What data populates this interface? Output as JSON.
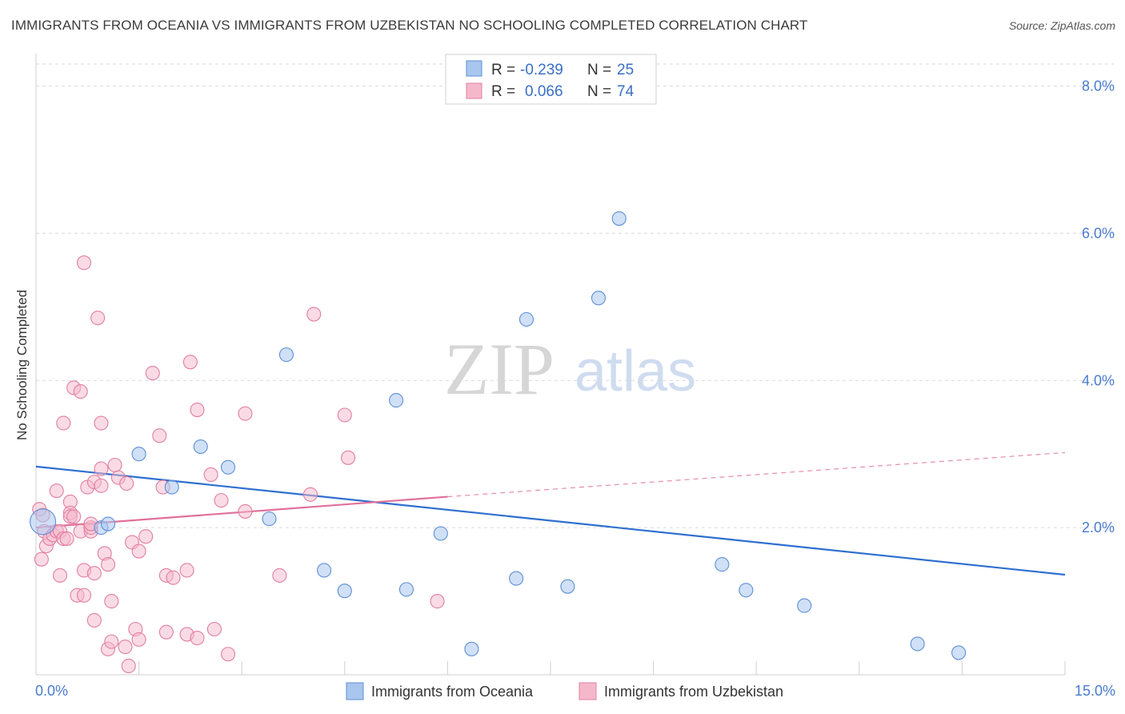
{
  "title": "IMMIGRANTS FROM OCEANIA VS IMMIGRANTS FROM UZBEKISTAN NO SCHOOLING COMPLETED CORRELATION CHART",
  "source": "Source: ZipAtlas.com",
  "watermark": {
    "zip": "ZIP",
    "atlas": "atlas"
  },
  "colors": {
    "oceania_fill": "#a9c6ef",
    "oceania_stroke": "#5e8fd6",
    "oceania_line": "#2f6fd0",
    "uzbekistan_fill": "#f5b8cb",
    "uzbekistan_stroke": "#e17fa0",
    "uzbekistan_line": "#e0709a",
    "tick_label": "#4a7bd0",
    "grid": "#d9d9d9"
  },
  "stats_box": {
    "rows": [
      {
        "r_label": "R =",
        "r_value": "-0.239",
        "n_label": "N =",
        "n_value": "25"
      },
      {
        "r_label": "R =",
        "r_value": "0.066",
        "n_label": "N =",
        "n_value": "74"
      }
    ]
  },
  "chart_data": {
    "type": "scatter",
    "title": "IMMIGRANTS FROM OCEANIA VS IMMIGRANTS FROM UZBEKISTAN NO SCHOOLING COMPLETED CORRELATION CHART",
    "xlabel": "",
    "ylabel": "No Schooling Completed",
    "xlim": [
      0,
      15
    ],
    "ylim": [
      0,
      8.3
    ],
    "x_tick_labels": [
      "0.0%",
      "15.0%"
    ],
    "y_ticks": [
      2,
      4,
      6,
      8
    ],
    "y_tick_labels": [
      "2.0%",
      "4.0%",
      "6.0%",
      "8.0%"
    ],
    "grid": "horizontal dashed",
    "legend_position": "bottom-center",
    "series": [
      {
        "name": "Immigrants from Oceania",
        "color": "#a9c6ef",
        "points": [
          [
            0.1,
            2.08
          ],
          [
            0.95,
            2.0
          ],
          [
            1.05,
            2.05
          ],
          [
            1.5,
            3.0
          ],
          [
            1.98,
            2.55
          ],
          [
            2.4,
            3.1
          ],
          [
            2.8,
            2.82
          ],
          [
            3.4,
            2.12
          ],
          [
            3.65,
            4.35
          ],
          [
            4.2,
            1.42
          ],
          [
            4.5,
            1.14
          ],
          [
            5.25,
            3.73
          ],
          [
            5.4,
            1.16
          ],
          [
            5.9,
            1.92
          ],
          [
            6.35,
            0.35
          ],
          [
            7.0,
            1.31
          ],
          [
            7.15,
            4.83
          ],
          [
            7.75,
            1.2
          ],
          [
            8.2,
            5.12
          ],
          [
            8.5,
            6.2
          ],
          [
            10.0,
            1.5
          ],
          [
            10.35,
            1.15
          ],
          [
            11.2,
            0.94
          ],
          [
            12.85,
            0.42
          ],
          [
            13.45,
            0.3
          ]
        ],
        "trend": {
          "x": [
            0,
            15
          ],
          "y": [
            2.83,
            1.36
          ]
        }
      },
      {
        "name": "Immigrants from Uzbekistan",
        "color": "#f5b8cb",
        "points": [
          [
            0.05,
            2.25
          ],
          [
            0.08,
            1.57
          ],
          [
            0.1,
            2.17
          ],
          [
            0.12,
            1.95
          ],
          [
            0.15,
            1.75
          ],
          [
            0.2,
            1.85
          ],
          [
            0.25,
            1.9
          ],
          [
            0.3,
            2.5
          ],
          [
            0.3,
            1.95
          ],
          [
            0.35,
            1.35
          ],
          [
            0.35,
            1.95
          ],
          [
            0.4,
            1.85
          ],
          [
            0.4,
            3.42
          ],
          [
            0.45,
            1.85
          ],
          [
            0.5,
            2.35
          ],
          [
            0.5,
            2.2
          ],
          [
            0.5,
            2.15
          ],
          [
            0.55,
            2.15
          ],
          [
            0.55,
            3.9
          ],
          [
            0.6,
            1.08
          ],
          [
            0.65,
            3.85
          ],
          [
            0.65,
            1.95
          ],
          [
            0.7,
            5.6
          ],
          [
            0.7,
            1.42
          ],
          [
            0.75,
            2.55
          ],
          [
            0.7,
            1.08
          ],
          [
            0.85,
            2.62
          ],
          [
            0.8,
            1.95
          ],
          [
            0.8,
            2.0
          ],
          [
            0.85,
            1.38
          ],
          [
            0.85,
            0.74
          ],
          [
            0.9,
            4.85
          ],
          [
            0.95,
            3.42
          ],
          [
            0.95,
            2.8
          ],
          [
            0.95,
            2.57
          ],
          [
            1.0,
            1.65
          ],
          [
            1.05,
            1.5
          ],
          [
            1.05,
            0.35
          ],
          [
            1.1,
            0.45
          ],
          [
            1.1,
            1.0
          ],
          [
            1.15,
            2.85
          ],
          [
            1.2,
            2.68
          ],
          [
            1.3,
            0.38
          ],
          [
            1.32,
            2.6
          ],
          [
            1.35,
            0.12
          ],
          [
            1.4,
            1.8
          ],
          [
            1.45,
            0.62
          ],
          [
            1.5,
            1.68
          ],
          [
            1.5,
            0.48
          ],
          [
            1.6,
            1.88
          ],
          [
            1.7,
            4.1
          ],
          [
            1.8,
            3.25
          ],
          [
            1.85,
            2.55
          ],
          [
            1.9,
            1.35
          ],
          [
            1.9,
            0.58
          ],
          [
            2.0,
            1.32
          ],
          [
            2.2,
            1.42
          ],
          [
            2.2,
            0.55
          ],
          [
            2.25,
            4.25
          ],
          [
            2.35,
            0.5
          ],
          [
            2.35,
            3.6
          ],
          [
            2.55,
            2.72
          ],
          [
            2.6,
            0.62
          ],
          [
            2.7,
            2.37
          ],
          [
            2.8,
            0.28
          ],
          [
            3.05,
            2.22
          ],
          [
            3.05,
            3.55
          ],
          [
            3.55,
            1.35
          ],
          [
            4.0,
            2.45
          ],
          [
            4.05,
            4.9
          ],
          [
            4.5,
            3.53
          ],
          [
            4.55,
            2.95
          ],
          [
            5.85,
            1.0
          ],
          [
            0.8,
            2.05
          ]
        ],
        "trend": {
          "x": [
            0,
            6
          ],
          "y": [
            2.0,
            2.42
          ],
          "dashed_extension": {
            "x": [
              6,
              15
            ],
            "y": [
              2.42,
              3.02
            ]
          }
        }
      }
    ]
  }
}
